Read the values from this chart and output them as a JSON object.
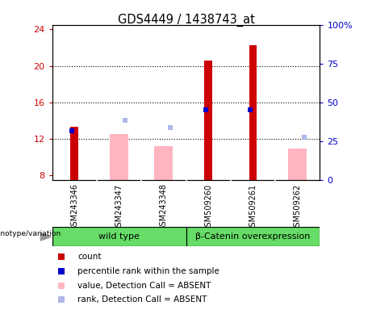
{
  "title": "GDS4449 / 1438743_at",
  "samples": [
    "GSM243346",
    "GSM243347",
    "GSM243348",
    "GSM509260",
    "GSM509261",
    "GSM509262"
  ],
  "groups": [
    {
      "name": "wild type",
      "samples_idx": [
        0,
        1,
        2
      ],
      "color": "#90EE90"
    },
    {
      "name": "β-Catenin overexpression",
      "samples_idx": [
        3,
        4,
        5
      ],
      "color": "#90EE90"
    }
  ],
  "count_values": [
    13.3,
    null,
    null,
    20.6,
    22.3,
    null
  ],
  "rank_values": [
    12.9,
    null,
    null,
    15.2,
    15.2,
    null
  ],
  "absent_value_bars": [
    null,
    12.5,
    11.2,
    null,
    null,
    10.9
  ],
  "absent_rank_values": [
    null,
    14.0,
    13.2,
    null,
    null,
    12.2
  ],
  "ylim_left": [
    7.5,
    24.5
  ],
  "ylim_right": [
    0,
    100
  ],
  "left_ticks": [
    8,
    12,
    16,
    20,
    24
  ],
  "right_ticks": [
    0,
    25,
    50,
    75,
    100
  ],
  "count_color": "#CC0000",
  "rank_color": "#0000CC",
  "absent_value_color": "#FFB6C1",
  "absent_rank_color": "#B0B8E8",
  "label_area_color": "#C8C8C8",
  "group_label_color": "#66DD66",
  "ylabel_left_color": "#CC0000",
  "ylabel_right_color": "#0000CC",
  "legend_items": [
    {
      "color": "#CC0000",
      "label": "count"
    },
    {
      "color": "#0000CC",
      "label": "percentile rank within the sample"
    },
    {
      "color": "#FFB6C1",
      "label": "value, Detection Call = ABSENT"
    },
    {
      "color": "#B0B8E8",
      "label": "rank, Detection Call = ABSENT"
    }
  ]
}
